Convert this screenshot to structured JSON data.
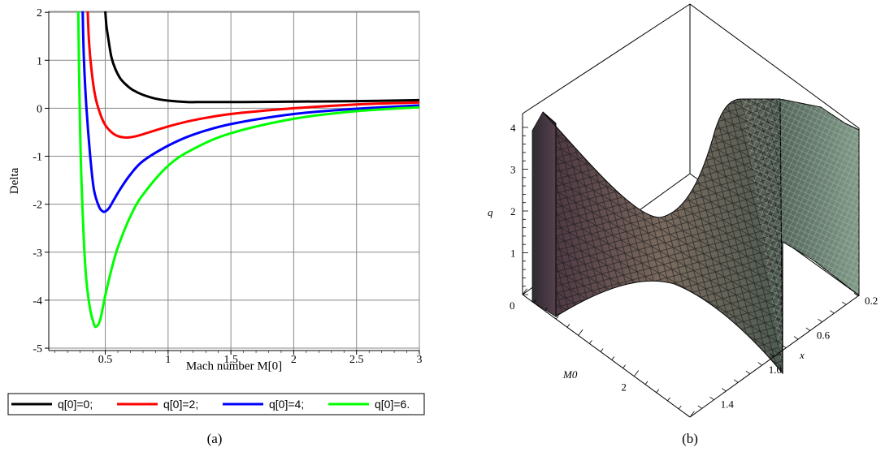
{
  "chart_data": [
    {
      "type": "line",
      "caption": "(a)",
      "xlabel": "Mach number M[0]",
      "ylabel": "Delta",
      "xlim": [
        0.05,
        3
      ],
      "ylim": [
        -5.05,
        2.02
      ],
      "xticks": [
        "0.5",
        "1",
        "1.5",
        "2",
        "2.5",
        "3"
      ],
      "yticks": [
        "2",
        "1",
        "0",
        "-1",
        "-2",
        "-3",
        "-4",
        "-5"
      ],
      "grid": true,
      "legend_position": "bottom",
      "series": [
        {
          "name": "q[0]=0;",
          "color": "#000000",
          "x": [
            0.5,
            0.51,
            0.53,
            0.55,
            0.58,
            0.62,
            0.67,
            0.72,
            0.8,
            0.9,
            1.0,
            1.15,
            1.3,
            1.6,
            2.0,
            2.5,
            3.0
          ],
          "y": [
            2.02,
            1.7,
            1.35,
            1.05,
            0.82,
            0.62,
            0.48,
            0.38,
            0.28,
            0.2,
            0.16,
            0.13,
            0.13,
            0.13,
            0.14,
            0.15,
            0.17
          ]
        },
        {
          "name": "q[0]=2;",
          "color": "#ff0000",
          "x": [
            0.36,
            0.37,
            0.39,
            0.42,
            0.46,
            0.5,
            0.55,
            0.6,
            0.67,
            0.75,
            0.85,
            1.0,
            1.2,
            1.5,
            2.0,
            2.5,
            3.0
          ],
          "y": [
            2.02,
            1.4,
            0.8,
            0.25,
            -0.12,
            -0.35,
            -0.5,
            -0.58,
            -0.61,
            -0.58,
            -0.5,
            -0.38,
            -0.25,
            -0.12,
            0.0,
            0.08,
            0.12
          ]
        },
        {
          "name": "q[0]=4;",
          "color": "#0000ff",
          "x": [
            0.32,
            0.33,
            0.35,
            0.38,
            0.41,
            0.45,
            0.48,
            0.5,
            0.53,
            0.57,
            0.62,
            0.7,
            0.8,
            1.0,
            1.2,
            1.5,
            2.0,
            2.5,
            3.0
          ],
          "y": [
            2.02,
            1.0,
            0.0,
            -1.0,
            -1.7,
            -2.05,
            -2.15,
            -2.15,
            -2.08,
            -1.9,
            -1.68,
            -1.38,
            -1.1,
            -0.78,
            -0.55,
            -0.33,
            -0.12,
            -0.01,
            0.06
          ]
        },
        {
          "name": "q[0]=6.",
          "color": "#00ff00",
          "x": [
            0.285,
            0.29,
            0.3,
            0.31,
            0.33,
            0.35,
            0.38,
            0.41,
            0.43,
            0.46,
            0.5,
            0.55,
            0.6,
            0.7,
            0.8,
            1.0,
            1.2,
            1.5,
            2.0,
            2.5,
            3.0
          ],
          "y": [
            2.02,
            1.0,
            -0.5,
            -1.5,
            -2.8,
            -3.6,
            -4.2,
            -4.5,
            -4.55,
            -4.4,
            -3.9,
            -3.35,
            -2.9,
            -2.25,
            -1.8,
            -1.2,
            -0.85,
            -0.52,
            -0.22,
            -0.06,
            0.02
          ]
        }
      ]
    },
    {
      "type": "surface3d",
      "caption": "(b)",
      "zlabel": "q",
      "xlabel": "M0",
      "ylabel": "x",
      "zticks": [
        "1",
        "2",
        "3",
        "4"
      ],
      "m0ticks": [
        "0",
        "2"
      ],
      "xticks": [
        "0.2",
        "0.6",
        "1.0",
        "1.4"
      ]
    }
  ]
}
